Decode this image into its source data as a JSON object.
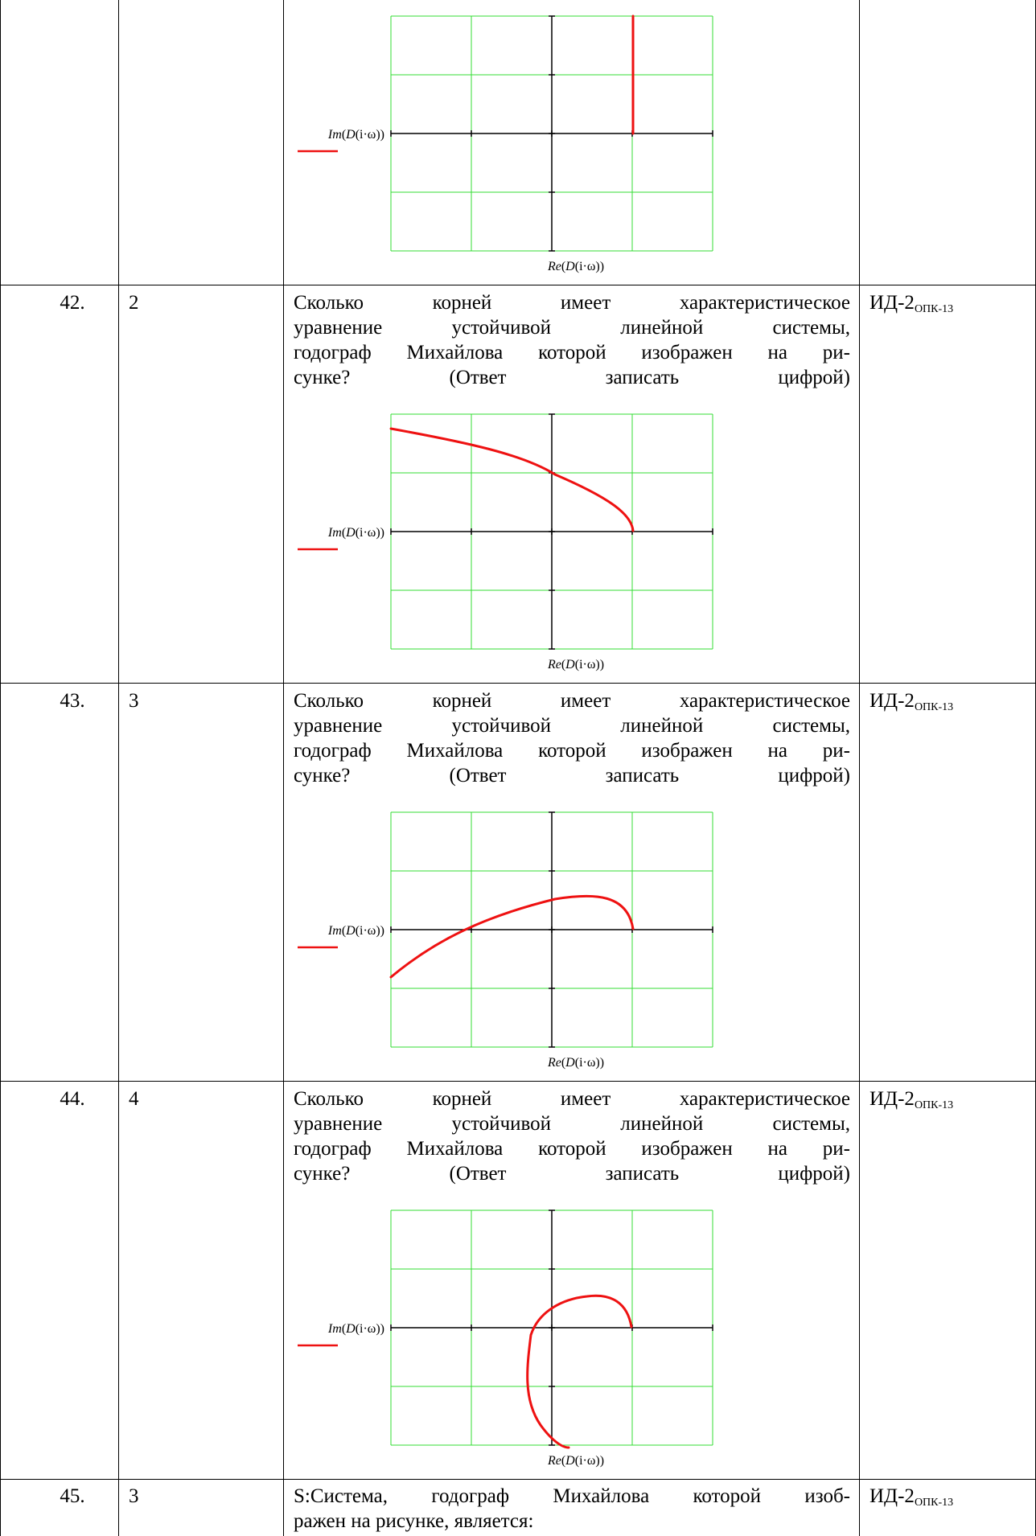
{
  "rows": [
    {
      "number": "",
      "answer": "",
      "question_lines": [],
      "code_main": "",
      "code_sub": "",
      "chart": {
        "y_label_fn": "Im",
        "y_label_inner": "D",
        "y_label_arg": "(i·ω))",
        "x_label_fn": "Re",
        "x_label_inner": "D",
        "x_label_arg": "(i·ω))"
      }
    },
    {
      "number": "42.",
      "answer": "2",
      "question_lines": [
        "Сколько корней имеет характеристическое",
        "уравнение устойчивой линейной системы,",
        "годограф Михайлова которой изображен на ри-",
        "сунке? (Ответ записать цифрой)"
      ],
      "code_main": "ИД-2",
      "code_sub": "ОПК-13",
      "chart": {
        "y_label_fn": "Im",
        "y_label_inner": "D",
        "y_label_arg": "(i·ω))",
        "x_label_fn": "Re",
        "x_label_inner": "D",
        "x_label_arg": "(i·ω))"
      }
    },
    {
      "number": "43.",
      "answer": "3",
      "question_lines": [
        "Сколько корней имеет характеристическое",
        "уравнение устойчивой линейной системы,",
        "годограф Михайлова которой изображен на ри-",
        "сунке? (Ответ записать цифрой)"
      ],
      "code_main": "ИД-2",
      "code_sub": "ОПК-13",
      "chart": {
        "y_label_fn": "Im",
        "y_label_inner": "D",
        "y_label_arg": "(i·ω))",
        "x_label_fn": "Re",
        "x_label_inner": "D",
        "x_label_arg": "(i·ω))"
      }
    },
    {
      "number": "44.",
      "answer": "4",
      "question_lines": [
        "Сколько корней имеет характеристическое",
        "уравнение устойчивой линейной системы,",
        "годограф Михайлова которой изображен на ри-",
        "сунке? (Ответ записать цифрой)"
      ],
      "code_main": "ИД-2",
      "code_sub": "ОПК-13",
      "chart": {
        "y_label_fn": "Im",
        "y_label_inner": "D",
        "y_label_arg": "(i·ω))",
        "x_label_fn": "Re",
        "x_label_inner": "D",
        "x_label_arg": "(i·ω))"
      }
    },
    {
      "number": "45.",
      "answer": "3",
      "question_lines": [
        "S:Система, годограф Михайлова которой изоб-",
        "ражен на рисунке, является:"
      ],
      "code_main": "ИД-2",
      "code_sub": "ОПК-13"
    }
  ],
  "colors": {
    "grid": "#33dd33",
    "axis": "#000000",
    "curve": "#ee1111"
  }
}
